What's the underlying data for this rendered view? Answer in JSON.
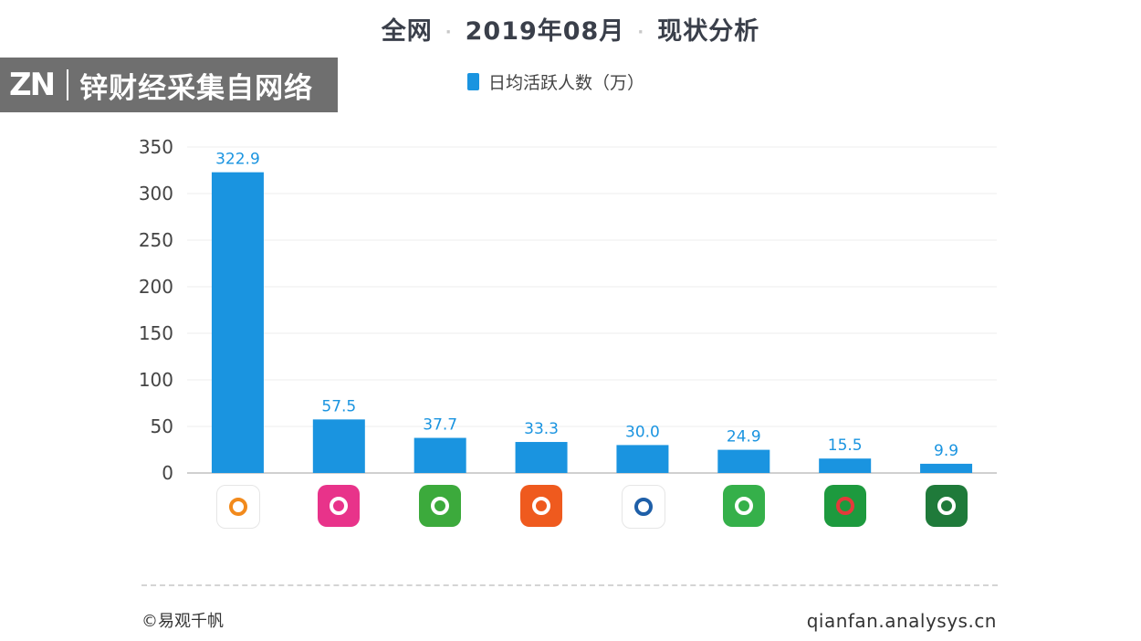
{
  "header": {
    "part1": "全网",
    "part2": "2019年08月",
    "part3": "现状分析",
    "separator": "·"
  },
  "watermark": {
    "logo": "ZN",
    "text": "锌财经采集自网络"
  },
  "footer": {
    "source": "©易观千帆",
    "url": "qianfan.analysys.cn"
  },
  "colors": {
    "bar": "#1a94e0",
    "value_label": "#1a94e0",
    "gridline": "#eeeeee",
    "axis_text": "#444444"
  },
  "chart_data": {
    "type": "bar",
    "title": "",
    "xlabel": "",
    "ylabel": "",
    "legend": "top-center",
    "grid": true,
    "ylim": [
      0,
      350
    ],
    "yticks": [
      0,
      50,
      100,
      150,
      200,
      250,
      300,
      350
    ],
    "categories": [
      "app-1",
      "app-2",
      "app-3",
      "app-4",
      "app-5",
      "app-6",
      "app-7",
      "app-8"
    ],
    "series": [
      {
        "name": "日均活跃人数（万）",
        "values": [
          322.9,
          57.5,
          37.7,
          33.3,
          30.0,
          24.9,
          15.5,
          9.9
        ]
      }
    ],
    "value_labels": [
      "322.9",
      "57.5",
      "37.7",
      "33.3",
      "30.0",
      "24.9",
      "15.5",
      "9.9"
    ],
    "category_icons": [
      {
        "name": "flame-app-icon",
        "bg": "#ffffff",
        "fg": "#f28a1c"
      },
      {
        "name": "pink-circle-app-icon",
        "bg": "#e8338a",
        "fg": "#ffffff"
      },
      {
        "name": "green-dog-app-icon",
        "bg": "#3caa3c",
        "fg": "#ffffff"
      },
      {
        "name": "orange-swirl-app-icon",
        "bg": "#ef5a1e",
        "fg": "#ffffff"
      },
      {
        "name": "box-fish-app-icon",
        "bg": "#ffffff",
        "fg": "#1e5fa8"
      },
      {
        "name": "green-cart-app-icon",
        "bg": "#35b04a",
        "fg": "#ffffff"
      },
      {
        "name": "strawberry-app-icon",
        "bg": "#1d9a3e",
        "fg": "#e33a3a"
      },
      {
        "name": "buy-app-icon",
        "bg": "#1f7a3a",
        "fg": "#ffffff"
      }
    ]
  }
}
